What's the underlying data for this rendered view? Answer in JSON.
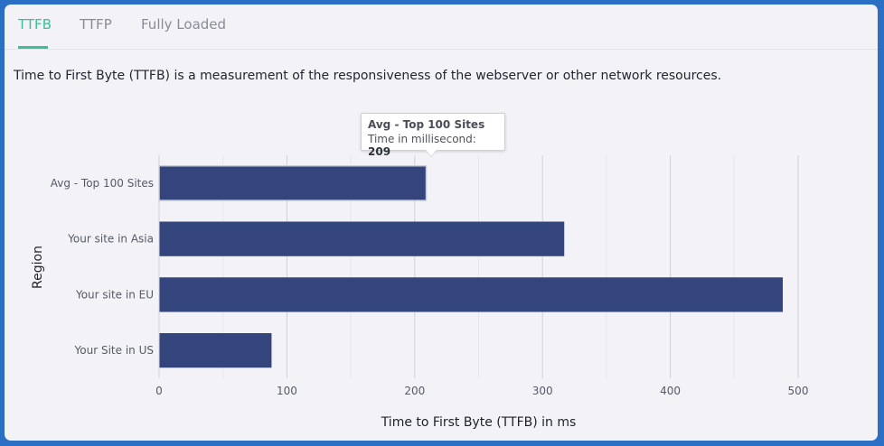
{
  "tabs": [
    {
      "label": "TTFB",
      "active": true
    },
    {
      "label": "TTFP",
      "active": false
    },
    {
      "label": "Fully Loaded",
      "active": false
    }
  ],
  "description": "Time to First Byte (TTFB) is a measurement of the responsiveness of the webserver or other network resources.",
  "tooltip": {
    "title": "Avg - Top 100 Sites",
    "label": "Time in millisecond: ",
    "value": "209"
  },
  "colors": {
    "bar": "#33457c",
    "accent": "#3bbf96",
    "background": "#f3f3f7"
  },
  "chart_data": {
    "type": "bar",
    "orientation": "horizontal",
    "categories": [
      "Avg - Top 100 Sites",
      "Your site in Asia",
      "Your site in EU",
      "Your Site in US"
    ],
    "values": [
      209,
      317,
      488,
      88
    ],
    "xlabel": "Time to First Byte (TTFB) in ms",
    "ylabel": "Region",
    "xlim": [
      0,
      500
    ],
    "xticks": [
      0,
      100,
      200,
      300,
      400,
      500
    ],
    "grid": true
  }
}
